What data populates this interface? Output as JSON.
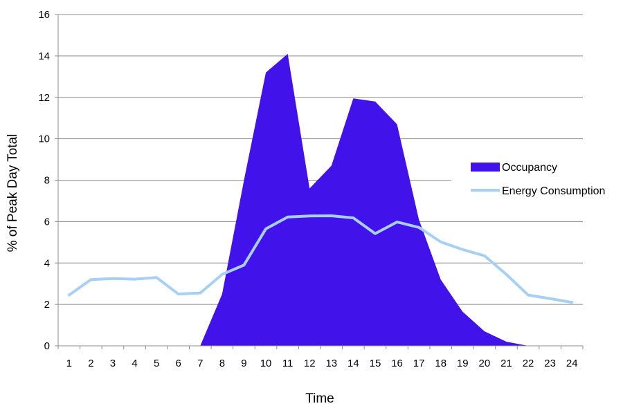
{
  "chart_data": {
    "type": "area",
    "title": "",
    "xlabel": "Time",
    "ylabel": "% of Peak Day Total",
    "ylim": [
      0,
      16
    ],
    "yticks": [
      0,
      2,
      4,
      6,
      8,
      10,
      12,
      14,
      16
    ],
    "categories": [
      "1",
      "2",
      "3",
      "4",
      "5",
      "6",
      "7",
      "8",
      "9",
      "10",
      "11",
      "12",
      "13",
      "14",
      "15",
      "16",
      "17",
      "18",
      "19",
      "20",
      "21",
      "22",
      "23",
      "24"
    ],
    "grid": true,
    "legend_position": "right",
    "series": [
      {
        "name": "Occupancy",
        "kind": "area",
        "color": "#4212EA",
        "x": [
          7,
          8,
          9,
          10,
          11,
          12,
          13,
          14,
          15,
          16,
          17,
          18,
          19,
          20,
          21,
          22
        ],
        "values": [
          0,
          2.5,
          8.0,
          13.2,
          14.1,
          7.6,
          8.7,
          11.95,
          11.8,
          10.7,
          6.1,
          3.2,
          1.65,
          0.7,
          0.2,
          0
        ]
      },
      {
        "name": "Energy Consumption",
        "kind": "line",
        "color": "#A8D0F5",
        "x": [
          1,
          2,
          3,
          4,
          5,
          6,
          7,
          8,
          9,
          10,
          11,
          12,
          13,
          14,
          15,
          16,
          17,
          18,
          19,
          20,
          21,
          22,
          23,
          24
        ],
        "values": [
          2.45,
          3.2,
          3.25,
          3.22,
          3.3,
          2.5,
          2.55,
          3.45,
          3.9,
          5.65,
          6.22,
          6.27,
          6.28,
          6.18,
          5.42,
          5.98,
          5.72,
          5.02,
          4.65,
          4.35,
          3.45,
          2.45,
          2.28,
          2.1
        ]
      }
    ]
  }
}
